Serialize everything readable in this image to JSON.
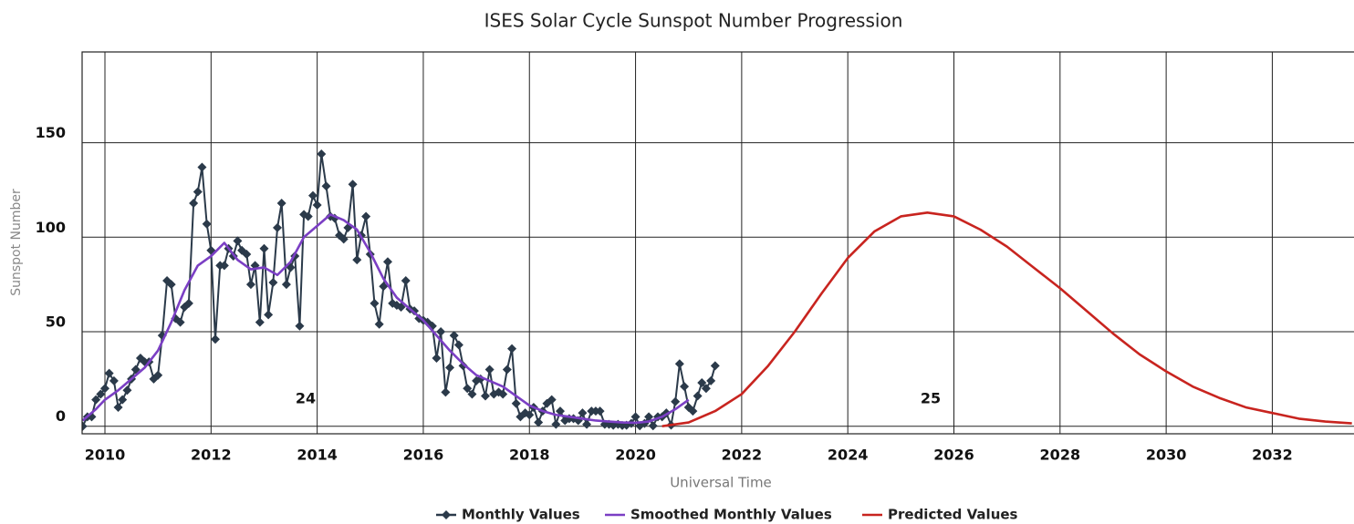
{
  "chart_data": {
    "type": "line",
    "title": "ISES Solar Cycle Sunspot Number Progression",
    "x_label": "Universal Time",
    "y_label": "Sunspot Number",
    "xlim": [
      2009.57,
      2033.54
    ],
    "ylim": [
      -4,
      198
    ],
    "xticks": [
      2010,
      2012,
      2014,
      2016,
      2018,
      2020,
      2022,
      2024,
      2026,
      2028,
      2030,
      2032
    ],
    "yticks": [
      0,
      50,
      100,
      150
    ],
    "grid": true,
    "legend": "bottom",
    "annotations": [
      "24",
      "25"
    ],
    "series": [
      {
        "name": "Monthly Values",
        "color": "#2b3a4a",
        "marker": "diamond",
        "x": [
          2009.58,
          2009.67,
          2009.75,
          2009.83,
          2009.92,
          2010.0,
          2010.08,
          2010.17,
          2010.25,
          2010.33,
          2010.42,
          2010.5,
          2010.58,
          2010.67,
          2010.75,
          2010.83,
          2010.92,
          2011.0,
          2011.08,
          2011.17,
          2011.25,
          2011.33,
          2011.42,
          2011.5,
          2011.58,
          2011.67,
          2011.75,
          2011.83,
          2011.92,
          2012.0,
          2012.08,
          2012.17,
          2012.25,
          2012.33,
          2012.42,
          2012.5,
          2012.58,
          2012.67,
          2012.75,
          2012.83,
          2012.92,
          2013.0,
          2013.08,
          2013.17,
          2013.25,
          2013.33,
          2013.42,
          2013.5,
          2013.58,
          2013.67,
          2013.75,
          2013.83,
          2013.92,
          2014.0,
          2014.08,
          2014.17,
          2014.25,
          2014.33,
          2014.42,
          2014.5,
          2014.58,
          2014.67,
          2014.75,
          2014.83,
          2014.92,
          2015.0,
          2015.08,
          2015.17,
          2015.25,
          2015.33,
          2015.42,
          2015.5,
          2015.58,
          2015.67,
          2015.75,
          2015.83,
          2015.92,
          2016.0,
          2016.08,
          2016.17,
          2016.25,
          2016.33,
          2016.42,
          2016.5,
          2016.58,
          2016.67,
          2016.75,
          2016.83,
          2016.92,
          2017.0,
          2017.08,
          2017.17,
          2017.25,
          2017.33,
          2017.42,
          2017.5,
          2017.58,
          2017.67,
          2017.75,
          2017.83,
          2017.92,
          2018.0,
          2018.08,
          2018.17,
          2018.25,
          2018.33,
          2018.42,
          2018.5,
          2018.58,
          2018.67,
          2018.75,
          2018.83,
          2018.92,
          2019.0,
          2019.08,
          2019.17,
          2019.25,
          2019.33,
          2019.42,
          2019.5,
          2019.58,
          2019.67,
          2019.75,
          2019.83,
          2019.92,
          2020.0,
          2020.08,
          2020.17,
          2020.25,
          2020.33,
          2020.42,
          2020.5,
          2020.58,
          2020.67,
          2020.75,
          2020.83,
          2020.92,
          2021.0,
          2021.08,
          2021.17,
          2021.25,
          2021.33,
          2021.42,
          2021.5
        ],
        "values": [
          0,
          5,
          5,
          14,
          17,
          20,
          28,
          24,
          10,
          14,
          19,
          25,
          30,
          36,
          34,
          34,
          25,
          27,
          48,
          77,
          75,
          57,
          55,
          63,
          65,
          118,
          124,
          137,
          107,
          93,
          46,
          85,
          85,
          94,
          90,
          98,
          93,
          91,
          75,
          85,
          55,
          94,
          59,
          76,
          105,
          118,
          75,
          84,
          90,
          53,
          112,
          111,
          122,
          117,
          144,
          127,
          111,
          110,
          101,
          99,
          105,
          128,
          88,
          101,
          111,
          91,
          65,
          54,
          74,
          87,
          65,
          64,
          63,
          77,
          62,
          61,
          57,
          56,
          55,
          53,
          36,
          50,
          18,
          31,
          48,
          43,
          32,
          20,
          17,
          24,
          25,
          16,
          30,
          17,
          18,
          17,
          30,
          41,
          12,
          5,
          7,
          6,
          10,
          2,
          8,
          12,
          14,
          1,
          8,
          3,
          4,
          4,
          3,
          7,
          1,
          8,
          8,
          8,
          1,
          1,
          0.5,
          1,
          0.4,
          0.5,
          1.5,
          5,
          0.2,
          1.5,
          5,
          0.2,
          5,
          5,
          7,
          0.6,
          13,
          33,
          21,
          10,
          8,
          16,
          23,
          20,
          24,
          32
        ]
      },
      {
        "name": "Smoothed Monthly Values",
        "color": "#7b3fc4",
        "x": [
          2009.58,
          2009.83,
          2010.0,
          2010.25,
          2010.5,
          2010.75,
          2011.0,
          2011.25,
          2011.5,
          2011.75,
          2012.0,
          2012.25,
          2012.5,
          2012.75,
          2013.0,
          2013.25,
          2013.5,
          2013.75,
          2014.0,
          2014.25,
          2014.5,
          2014.75,
          2015.0,
          2015.25,
          2015.5,
          2015.75,
          2016.0,
          2016.25,
          2016.5,
          2016.75,
          2017.0,
          2017.25,
          2017.5,
          2017.75,
          2018.0,
          2018.25,
          2018.5,
          2018.75,
          2019.0,
          2019.25,
          2019.5,
          2019.75,
          2020.0,
          2020.25,
          2020.5,
          2020.75,
          2021.0
        ],
        "values": [
          3,
          9,
          14,
          19,
          25,
          31,
          40,
          55,
          72,
          85,
          90,
          97,
          88,
          83,
          84,
          80,
          87,
          100,
          106,
          112,
          109,
          104,
          92,
          78,
          68,
          62,
          56,
          48,
          40,
          33,
          27,
          24,
          21,
          16,
          11,
          8,
          6,
          5,
          4,
          3,
          2.5,
          2,
          1.8,
          2.5,
          5,
          9,
          14
        ]
      },
      {
        "name": "Predicted Values",
        "color": "#c8241f",
        "x": [
          2020.5,
          2021.0,
          2021.5,
          2022.0,
          2022.5,
          2023.0,
          2023.5,
          2024.0,
          2024.5,
          2025.0,
          2025.5,
          2026.0,
          2026.5,
          2027.0,
          2027.5,
          2028.0,
          2028.5,
          2029.0,
          2029.5,
          2030.0,
          2030.5,
          2031.0,
          2031.5,
          2032.0,
          2032.5,
          2033.0,
          2033.5
        ],
        "values": [
          0,
          2,
          8,
          17,
          32,
          50,
          70,
          89,
          103,
          111,
          113,
          111,
          104,
          95,
          84,
          73,
          61,
          49,
          38,
          29,
          21,
          15,
          10,
          7,
          4,
          2.5,
          1.5
        ]
      }
    ]
  }
}
